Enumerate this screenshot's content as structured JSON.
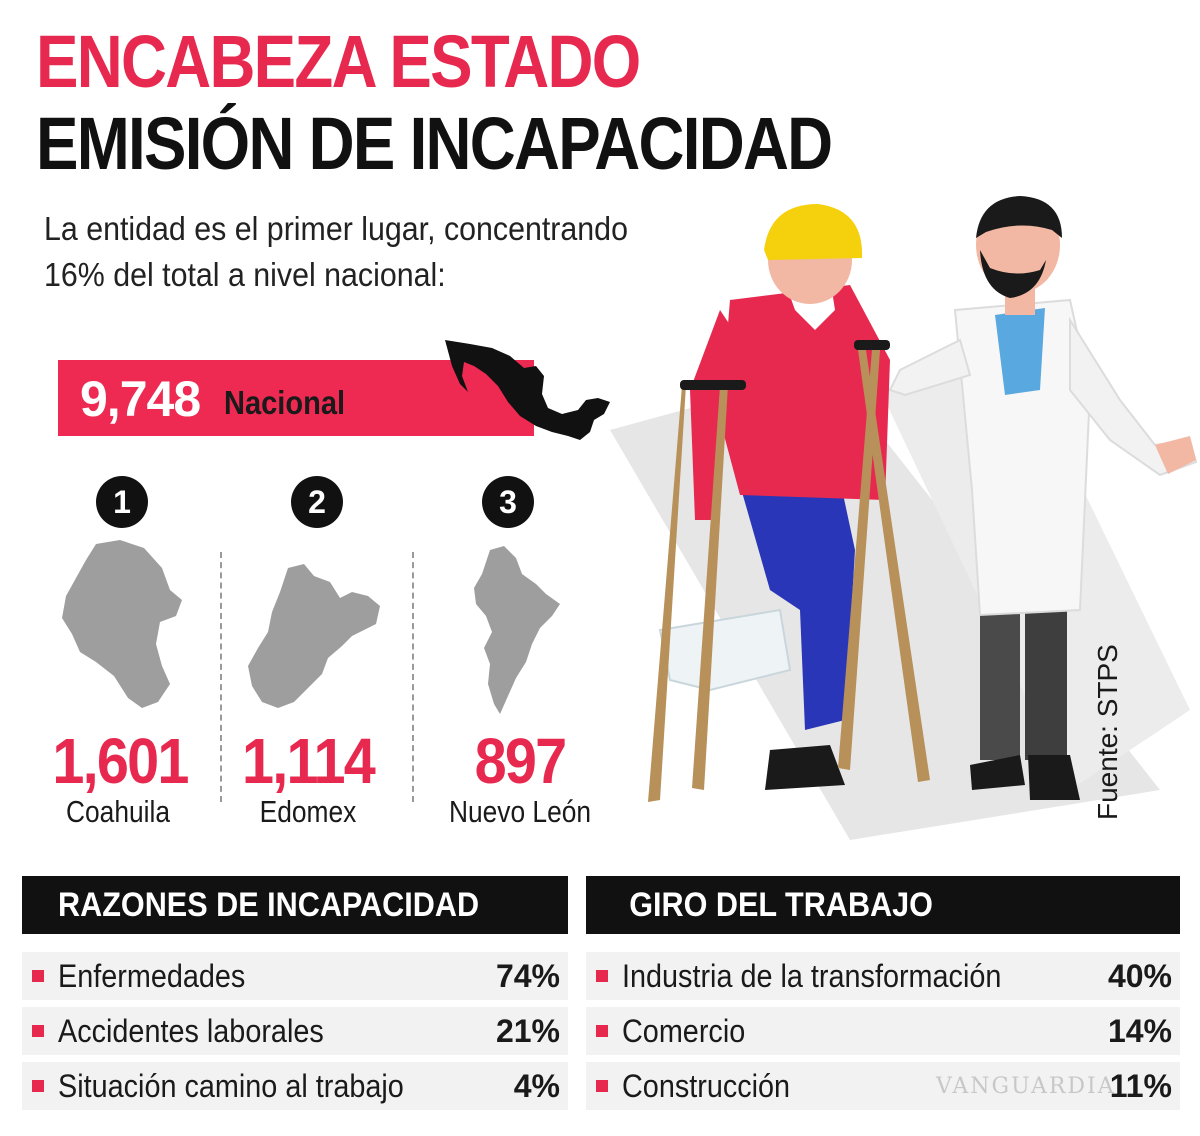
{
  "title": {
    "line1": "ENCABEZA ESTADO",
    "line2": "EMISIÓN DE INCAPACIDAD"
  },
  "subtitle": "La entidad es el primer lugar, concentrando 16% del total a nivel nacional:",
  "national": {
    "value": "9,748",
    "label": "Nacional"
  },
  "states": [
    {
      "rank": "1",
      "value": "1,601",
      "name": "Coahuila"
    },
    {
      "rank": "2",
      "value": "1,114",
      "name": "Edomex"
    },
    {
      "rank": "3",
      "value": "897",
      "name": "Nuevo León"
    }
  ],
  "reasons": {
    "title": "RAZONES DE INCAPACIDAD",
    "items": [
      {
        "label": "Enfermedades",
        "pct": "74%"
      },
      {
        "label": "Accidentes laborales",
        "pct": "21%"
      },
      {
        "label": "Situación camino al trabajo",
        "pct": "4%"
      }
    ]
  },
  "work": {
    "title": "GIRO DEL TRABAJO",
    "items": [
      {
        "label": "Industria de la transformación",
        "pct": "40%"
      },
      {
        "label": "Comercio",
        "pct": "14%"
      },
      {
        "label": "Construcción",
        "pct": "11%"
      }
    ]
  },
  "source": "Fuente: STPS",
  "watermark": "VANGUARDIA",
  "colors": {
    "accent": "#e8294f",
    "dark": "#111111",
    "map_gray": "#9e9e9e"
  }
}
